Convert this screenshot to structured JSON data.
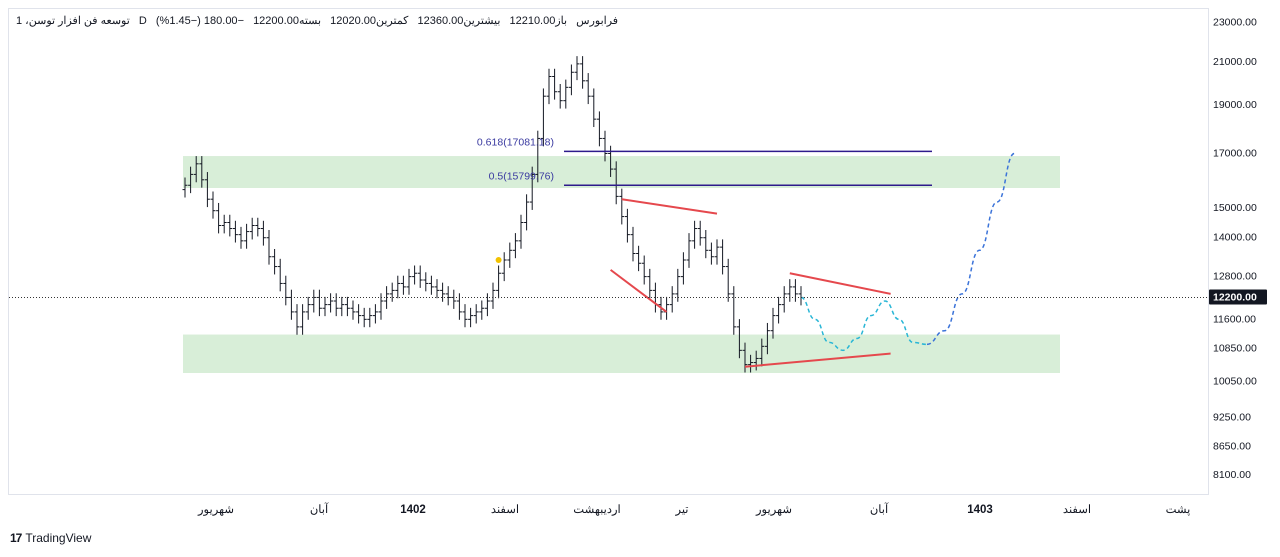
{
  "header": {
    "symbol": "توسعه فن افزار توسن، 1",
    "timeframe": "D",
    "exchange": "فرابورس",
    "open": "باز12210.00",
    "high": "بیشترین12360.00",
    "low": "کمترین12020.00",
    "close": "بسته12200.00",
    "change": "−180.00 (−1.45%)"
  },
  "current_price_label": "12200.00",
  "colors": {
    "bars": "#131722",
    "zone_fill": "#d8eed8",
    "fib_line": "#2e1a8c",
    "trend_line": "#e5484d",
    "projection_blue": "#3b73d9",
    "projection_cyan": "#29b6d6",
    "marker": "#f2c200"
  },
  "chart_data": {
    "type": "ohlc",
    "y_ticks": [
      23000,
      21000,
      19000,
      17000,
      15000,
      14000,
      12800,
      11600,
      10850,
      10050,
      9250,
      8650,
      8100
    ],
    "y_tick_labels": [
      "23000.00",
      "21000.00",
      "19000.00",
      "17000.00",
      "15000.00",
      "14000.00",
      "12800.00",
      "11600.00",
      "10850.00",
      "10050.00",
      "9250.00",
      "8650.00",
      "8100.00"
    ],
    "y_scale": "log",
    "ylim": [
      7900,
      23500
    ],
    "x_labels": [
      "شهریور",
      "آبان",
      "1402",
      "اسفند",
      "اردیبهشت",
      "تیر",
      "شهریور",
      "آبان",
      "1403",
      "اسفند",
      "پشت"
    ],
    "x_label_bold": [
      false,
      false,
      true,
      false,
      false,
      false,
      false,
      false,
      true,
      false,
      false
    ],
    "current_price": 12200,
    "fib_levels": [
      {
        "label": "0.618(17081.18)",
        "value": 17081.18
      },
      {
        "label": "0.5(15799.76)",
        "value": 15799.76
      }
    ],
    "zones": [
      {
        "top": 16900,
        "bottom": 15700
      },
      {
        "top": 11200,
        "bottom": 10250
      }
    ],
    "closes": [
      15800,
      16200,
      16600,
      16000,
      15300,
      14900,
      14400,
      14500,
      14300,
      14100,
      13900,
      14200,
      14400,
      14300,
      14000,
      13400,
      13100,
      12600,
      12200,
      11800,
      11400,
      11800,
      12000,
      12200,
      11900,
      12000,
      12100,
      11900,
      12000,
      11900,
      11800,
      11700,
      11600,
      11700,
      11800,
      12100,
      12300,
      12400,
      12600,
      12500,
      12800,
      12900,
      12700,
      12600,
      12500,
      12400,
      12300,
      12200,
      12100,
      11800,
      11600,
      11700,
      11800,
      11900,
      12100,
      12400,
      12900,
      13300,
      13600,
      13900,
      14500,
      15200,
      16200,
      17600,
      19400,
      20300,
      19600,
      19200,
      19800,
      20500,
      20900,
      20100,
      19400,
      18400,
      17600,
      17000,
      16400,
      15400,
      14700,
      14100,
      13500,
      13200,
      12800,
      12400,
      12000,
      11800,
      12000,
      12300,
      12800,
      13300,
      13900,
      14300,
      14000,
      13600,
      13400,
      13700,
      13100,
      12300,
      11400,
      10800,
      10450,
      10500,
      10600,
      10900,
      11300,
      11700,
      12000,
      12300,
      12500,
      12300,
      12200
    ],
    "projection_cyan": [
      12200,
      11600,
      11000,
      10800,
      11100,
      11700,
      12100,
      11600,
      11000,
      10950
    ],
    "projection_blue": [
      10950,
      11300,
      12300,
      13600,
      15200,
      17000
    ],
    "marker_value": 13300
  }
}
